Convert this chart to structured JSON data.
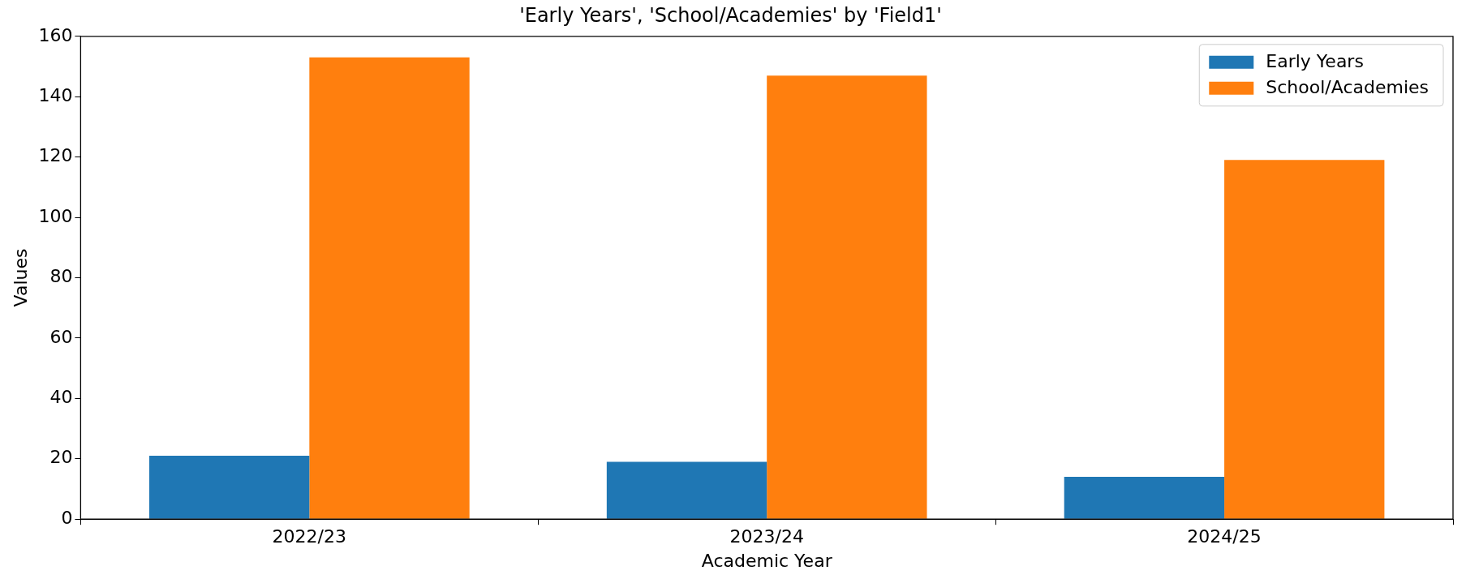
{
  "chart_data": {
    "type": "bar",
    "title": "'Early Years', 'School/Academies' by 'Field1'",
    "xlabel": "Academic Year",
    "ylabel": "Values",
    "categories": [
      "2022/23",
      "2023/24",
      "2024/25"
    ],
    "series": [
      {
        "name": "Early Years",
        "color": "#1f77b4",
        "values": [
          21,
          19,
          14
        ]
      },
      {
        "name": "School/Academies",
        "color": "#ff7f0e",
        "values": [
          153,
          147,
          119
        ]
      }
    ],
    "ylim": [
      0,
      160
    ],
    "yticks": [
      0,
      20,
      40,
      60,
      80,
      100,
      120,
      140,
      160
    ],
    "grid": false,
    "legend": "top right"
  }
}
